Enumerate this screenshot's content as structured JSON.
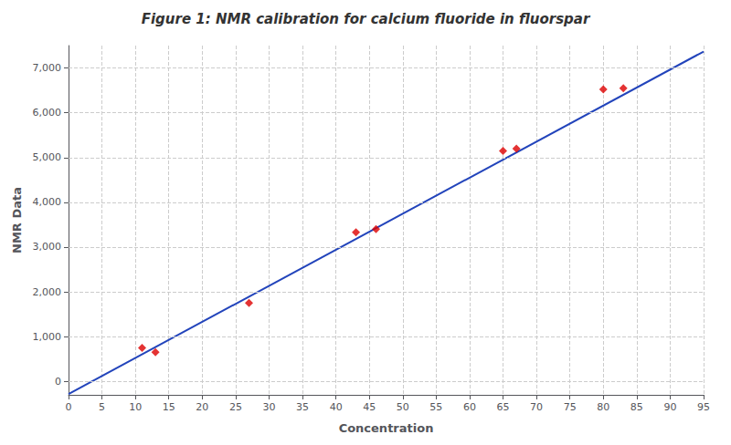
{
  "chart_data": {
    "type": "scatter",
    "title": "Figure 1: NMR calibration for calcium fluoride in fluorspar",
    "xlabel": "Concentration",
    "ylabel": "NMR Data",
    "series": [
      {
        "type": "scatter",
        "color": "#dd0000",
        "marker": "diamond",
        "x": [
          11,
          13,
          27,
          43,
          46,
          65,
          67,
          80,
          83
        ],
        "values": [
          750,
          650,
          1750,
          3330,
          3400,
          5150,
          5200,
          6520,
          6550
        ]
      },
      {
        "type": "line",
        "color": "#2244bb",
        "line_style": "solid",
        "x": [
          0,
          95
        ],
        "values": [
          -280,
          7367.5
        ]
      }
    ],
    "xlim": [
      0,
      95
    ],
    "ylim": [
      -300,
      7500
    ],
    "xticks": [
      0,
      5,
      10,
      15,
      20,
      25,
      30,
      35,
      40,
      45,
      50,
      55,
      60,
      65,
      70,
      75,
      80,
      85,
      90,
      95
    ],
    "yticks": [
      0,
      1000,
      2000,
      3000,
      4000,
      5000,
      6000,
      7000
    ],
    "grid": true
  }
}
